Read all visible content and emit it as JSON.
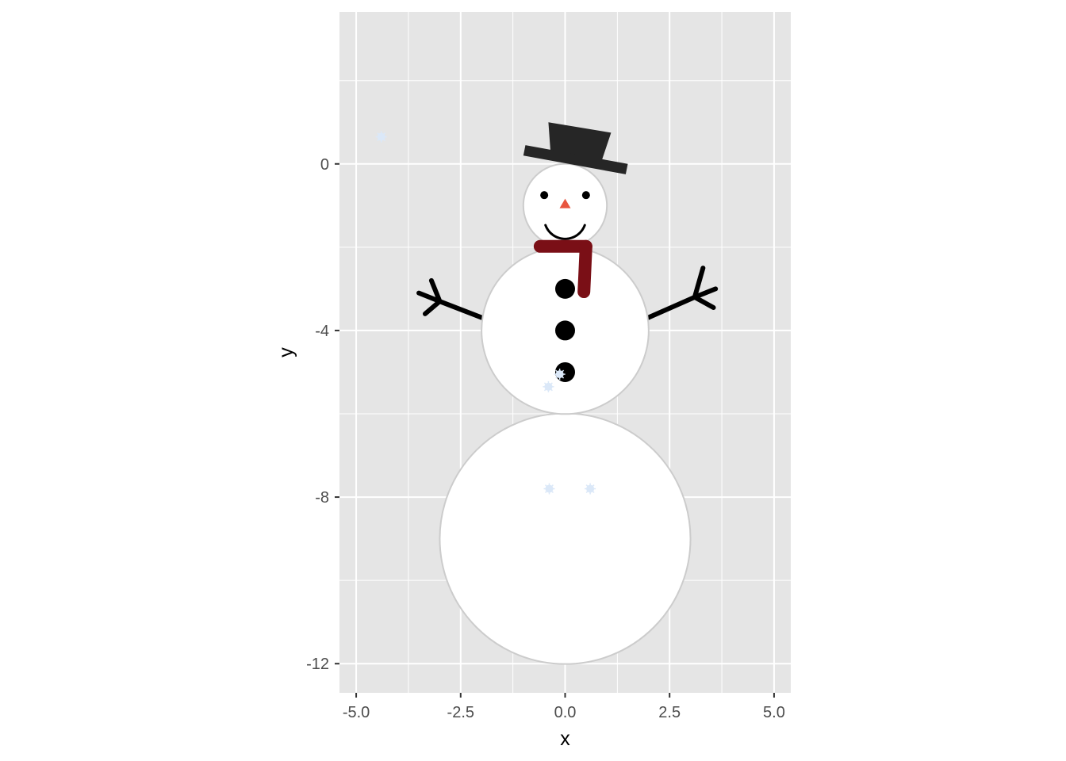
{
  "chart_data": {
    "type": "scatter",
    "title": "",
    "xlabel": "x",
    "ylabel": "y",
    "xlim": [
      -5.4,
      5.4
    ],
    "ylim": [
      -12.7,
      3.65
    ],
    "x_ticks": [
      -5.0,
      -2.5,
      0.0,
      2.5,
      5.0
    ],
    "x_tick_labels": [
      "-5.0",
      "-2.5",
      "0.0",
      "2.5",
      "5.0"
    ],
    "y_ticks": [
      0,
      -4,
      -8,
      -12
    ],
    "y_tick_labels": [
      "0",
      "-4",
      "-8",
      "-12"
    ],
    "grid": true,
    "colors": {
      "panel": "#e5e5e5",
      "grid": "#ffffff",
      "snow_body": "#ffffff",
      "snow_outline": "#cccccc",
      "hat": "#262626",
      "scarf": "#7a0f16",
      "nose": "#e8553f",
      "coal": "#000000",
      "arms": "#000000",
      "flake": "#dbe8f8"
    },
    "body_circles": [
      {
        "name": "bottom",
        "x": 0,
        "y": -9,
        "r": 3
      },
      {
        "name": "middle",
        "x": 0,
        "y": -4,
        "r": 2
      },
      {
        "name": "head",
        "x": 0,
        "y": -1,
        "r": 1
      }
    ],
    "eyes": [
      {
        "x": -0.5,
        "y": -0.75
      },
      {
        "x": 0.5,
        "y": -0.75
      }
    ],
    "nose": {
      "x": 0,
      "y": -0.95
    },
    "smile": {
      "x": 0,
      "y": -1.3,
      "r": 0.5,
      "from_deg": 200,
      "to_deg": 340
    },
    "buttons": [
      {
        "x": 0,
        "y": -3
      },
      {
        "x": 0,
        "y": -4
      },
      {
        "x": 0,
        "y": -5
      }
    ],
    "hat": {
      "brim": [
        [
          -1.0,
          0.2
        ],
        [
          -0.95,
          0.45
        ],
        [
          1.5,
          0.0
        ],
        [
          1.45,
          -0.25
        ]
      ],
      "crown": [
        [
          -0.35,
          0.3
        ],
        [
          -0.4,
          1.0
        ],
        [
          1.1,
          0.75
        ],
        [
          0.85,
          0.0
        ]
      ]
    },
    "scarf": {
      "wrap": [
        [
          -0.6,
          -1.98
        ],
        [
          0.5,
          -1.98
        ]
      ],
      "tail": [
        [
          0.5,
          -1.98
        ],
        [
          0.45,
          -3.07
        ]
      ]
    },
    "arms": [
      {
        "side": "left",
        "segments": [
          [
            [
              -1.97,
              -3.7
            ],
            [
              -3.0,
              -3.3
            ]
          ],
          [
            [
              -3.0,
              -3.3
            ],
            [
              -3.2,
              -2.8
            ]
          ],
          [
            [
              -3.0,
              -3.3
            ],
            [
              -3.35,
              -3.6
            ]
          ],
          [
            [
              -3.0,
              -3.3
            ],
            [
              -3.5,
              -3.1
            ]
          ]
        ]
      },
      {
        "side": "right",
        "segments": [
          [
            [
              1.97,
              -3.7
            ],
            [
              3.1,
              -3.2
            ]
          ],
          [
            [
              3.1,
              -3.2
            ],
            [
              3.3,
              -2.5
            ]
          ],
          [
            [
              3.1,
              -3.2
            ],
            [
              3.6,
              -3.0
            ]
          ],
          [
            [
              3.1,
              -3.2
            ],
            [
              3.55,
              -3.45
            ]
          ]
        ]
      }
    ],
    "snowflakes": [
      {
        "x": -4.4,
        "y": 0.65
      },
      {
        "x": -0.4,
        "y": -5.35
      },
      {
        "x": -0.13,
        "y": -5.05
      },
      {
        "x": -0.38,
        "y": -7.8
      },
      {
        "x": 0.6,
        "y": -7.8
      }
    ]
  }
}
